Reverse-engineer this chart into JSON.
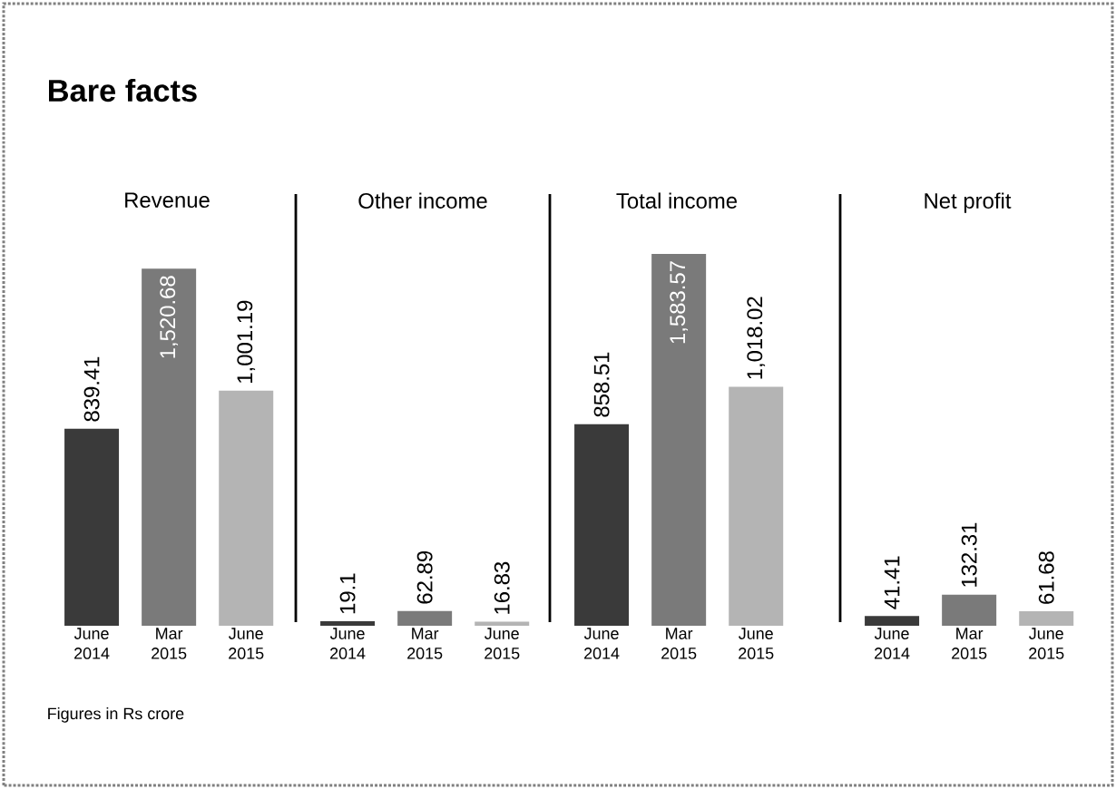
{
  "chart_data": [
    {
      "type": "bar",
      "title": "Bare facts",
      "subtitle": "Revenue",
      "categories": [
        "June 2014",
        "Mar 2015",
        "June 2015"
      ],
      "values": [
        839.41,
        1520.68,
        1001.19
      ],
      "value_labels": [
        "839.41",
        "1,520.68",
        "1,001.19"
      ],
      "colors": [
        "#3a3a3a",
        "#7a7a7a",
        "#b4b4b4"
      ],
      "annotations": [
        "Figures in Rs crore"
      ]
    },
    {
      "type": "bar",
      "subtitle": "Other income",
      "categories": [
        "June 2014",
        "Mar 2015",
        "June 2015"
      ],
      "values": [
        19.1,
        62.89,
        16.83
      ],
      "value_labels": [
        "19.1",
        "62.89",
        "16.83"
      ],
      "colors": [
        "#3a3a3a",
        "#7a7a7a",
        "#b4b4b4"
      ]
    },
    {
      "type": "bar",
      "subtitle": "Total income",
      "categories": [
        "June 2014",
        "Mar 2015",
        "June 2015"
      ],
      "values": [
        858.51,
        1583.57,
        1018.02
      ],
      "value_labels": [
        "858.51",
        "1,583.57",
        "1,018.02"
      ],
      "colors": [
        "#3a3a3a",
        "#7a7a7a",
        "#b4b4b4"
      ]
    },
    {
      "type": "bar",
      "subtitle": "Net profit",
      "categories": [
        "June 2014",
        "Mar 2015",
        "June 2015"
      ],
      "values": [
        41.41,
        132.31,
        61.68
      ],
      "value_labels": [
        "41.41",
        "132.31",
        "61.68"
      ],
      "colors": [
        "#3a3a3a",
        "#7a7a7a",
        "#b4b4b4"
      ]
    }
  ]
}
